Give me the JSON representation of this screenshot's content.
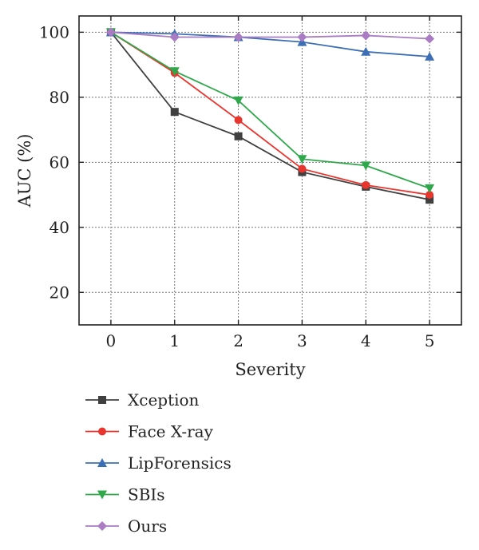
{
  "chart_data": {
    "type": "line",
    "xlabel": "Severity",
    "ylabel": "AUC (%)",
    "x": [
      0,
      1,
      2,
      3,
      4,
      5
    ],
    "xlim": [
      -0.5,
      5.5
    ],
    "ylim": [
      10,
      105
    ],
    "xticks": [
      "0",
      "1",
      "2",
      "3",
      "4",
      "5"
    ],
    "yticks": [
      "20",
      "40",
      "60",
      "80",
      "100"
    ],
    "ytick_values": [
      20,
      40,
      60,
      80,
      100
    ],
    "grid": true,
    "legend_position": "below",
    "series": [
      {
        "name": "Xception",
        "color": "#404040",
        "marker": "square",
        "values": [
          100,
          75.5,
          68,
          57,
          52.5,
          48.5
        ]
      },
      {
        "name": "Face X-ray",
        "color": "#e8352e",
        "marker": "circle",
        "values": [
          100,
          87.5,
          73,
          58,
          53,
          50
        ]
      },
      {
        "name": "LipForensics",
        "color": "#3d6fb5",
        "marker": "triangle-up",
        "values": [
          100,
          99.5,
          98.5,
          97,
          94,
          92.5
        ]
      },
      {
        "name": "SBIs",
        "color": "#2ea84a",
        "marker": "triangle-down",
        "values": [
          100,
          88,
          79,
          61,
          59,
          52
        ]
      },
      {
        "name": "Ours",
        "color": "#a97cc4",
        "marker": "diamond",
        "values": [
          100,
          98.5,
          98.5,
          98.5,
          99,
          98
        ]
      }
    ]
  }
}
